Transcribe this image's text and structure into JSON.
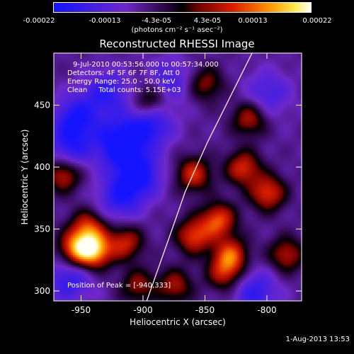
{
  "colorbar": {
    "ticks": [
      "-0.00022",
      "-0.00013",
      "-4.3e-05",
      "4.3e-05",
      "0.00013",
      "0.00022"
    ],
    "unit_label": "(photons cm⁻² s⁻¹ asec⁻²)"
  },
  "title": "Reconstructed RHESSI Image",
  "info": {
    "line1": "9-Jul-2010 00:53:56.000 to 00:57:34.000",
    "line2": "Detectors: 4F 5F 6F 7F 8F, Att 0",
    "line3": "Energy Range: 25.0 - 50.0 keV",
    "line4": "Clean     Total counts: 5.15E+03",
    "peak": "Position of Peak = [-940,333]"
  },
  "timestamp": "1-Aug-2013 13:53",
  "chart_data": {
    "type": "heatmap",
    "title": "Reconstructed RHESSI Image",
    "xlabel": "Heliocentric X (arcsec)",
    "ylabel": "Heliocentric Y (arcsec)",
    "xlim": [
      -972,
      -772
    ],
    "ylim": [
      292,
      492
    ],
    "xticks": [
      -950,
      -900,
      -850,
      -800
    ],
    "yticks": [
      300,
      350,
      400,
      450
    ],
    "colorbar_range": [
      -0.00022,
      0.00022
    ],
    "peak_position": [
      -940,
      333
    ],
    "limb_curve": [
      [
        -897,
        292
      ],
      [
        -880,
        340
      ],
      [
        -866,
        380
      ],
      [
        -848,
        420
      ],
      [
        -828,
        460
      ],
      [
        -812,
        492
      ]
    ],
    "hot_spots": [
      {
        "x": -940,
        "y": 333,
        "intensity": 1.0
      },
      {
        "x": -955,
        "y": 335,
        "intensity": 0.85
      },
      {
        "x": -945,
        "y": 352,
        "intensity": 0.7
      },
      {
        "x": -965,
        "y": 395,
        "intensity": 0.7
      },
      {
        "x": -915,
        "y": 340,
        "intensity": 0.65
      },
      {
        "x": -860,
        "y": 395,
        "intensity": 0.7
      },
      {
        "x": -860,
        "y": 345,
        "intensity": 0.75
      },
      {
        "x": -840,
        "y": 358,
        "intensity": 0.8
      },
      {
        "x": -830,
        "y": 330,
        "intensity": 0.75
      },
      {
        "x": -820,
        "y": 400,
        "intensity": 0.7
      },
      {
        "x": -800,
        "y": 380,
        "intensity": 0.75
      },
      {
        "x": -815,
        "y": 440,
        "intensity": 0.6
      },
      {
        "x": -835,
        "y": 315,
        "intensity": 0.6
      },
      {
        "x": -895,
        "y": 455,
        "intensity": 0.55
      },
      {
        "x": -785,
        "y": 330,
        "intensity": 0.6
      },
      {
        "x": -875,
        "y": 305,
        "intensity": 0.55
      },
      {
        "x": -905,
        "y": 305,
        "intensity": 0.5
      },
      {
        "x": -850,
        "y": 468,
        "intensity": 0.5
      }
    ],
    "cold_spots": [
      {
        "x": -920,
        "y": 420,
        "intensity": -0.8
      },
      {
        "x": -905,
        "y": 395,
        "intensity": -0.7
      },
      {
        "x": -955,
        "y": 440,
        "intensity": -0.6
      },
      {
        "x": -895,
        "y": 435,
        "intensity": -0.6
      },
      {
        "x": -960,
        "y": 415,
        "intensity": -0.5
      },
      {
        "x": -920,
        "y": 375,
        "intensity": -0.5
      },
      {
        "x": -810,
        "y": 300,
        "intensity": -0.5
      },
      {
        "x": -960,
        "y": 310,
        "intensity": -0.5
      },
      {
        "x": -880,
        "y": 470,
        "intensity": -0.4
      },
      {
        "x": -800,
        "y": 460,
        "intensity": -0.4
      },
      {
        "x": -930,
        "y": 460,
        "intensity": -0.5
      }
    ]
  }
}
